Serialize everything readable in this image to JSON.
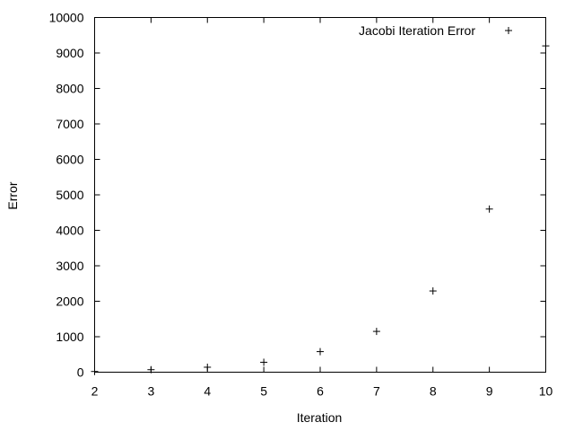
{
  "chart_data": {
    "type": "scatter",
    "xlabel": "Iteration",
    "ylabel": "Error",
    "xlim": [
      2,
      10
    ],
    "ylim": [
      0,
      10000
    ],
    "xticks": [
      "2",
      "3",
      "4",
      "5",
      "6",
      "7",
      "8",
      "9",
      "10"
    ],
    "yticks": [
      "0",
      "1000",
      "2000",
      "3000",
      "4000",
      "5000",
      "6000",
      "7000",
      "8000",
      "9000",
      "10000"
    ],
    "grid": false,
    "legend_position": "top-right",
    "marker": "plus",
    "series": [
      {
        "name": "Jacobi Iteration Error",
        "x": [
          2,
          3,
          4,
          5,
          6,
          7,
          8,
          9,
          10
        ],
        "y": [
          20,
          70,
          140,
          280,
          580,
          1150,
          2290,
          4600,
          9200
        ]
      }
    ]
  }
}
